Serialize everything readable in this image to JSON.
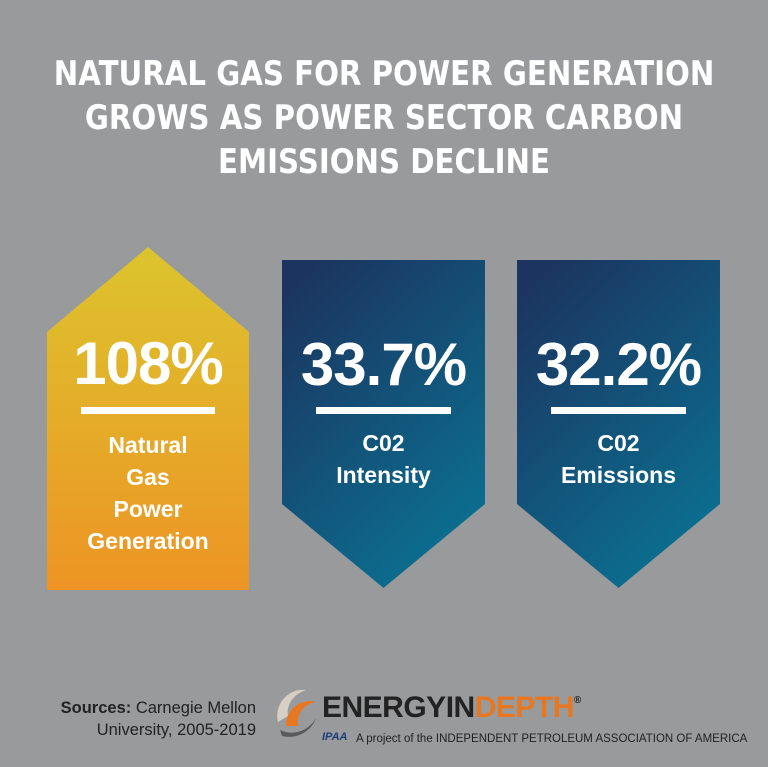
{
  "title": {
    "line1": "NATURAL GAS FOR POWER GENERATION",
    "line2": "GROWS AS POWER SECTOR CARBON",
    "line3": "EMISSIONS DECLINE"
  },
  "cards": [
    {
      "value": "108%",
      "label_lines": [
        "Natural",
        "Gas",
        "Power",
        "Generation"
      ],
      "direction": "up",
      "colors": {
        "top": "#e0c22d",
        "bottom": "#ec9a26"
      }
    },
    {
      "value": "33.7%",
      "label_lines": [
        "C02",
        "Intensity"
      ],
      "direction": "down",
      "colors": {
        "top": "#1c3a62",
        "bottom": "#0e6e90"
      }
    },
    {
      "value": "32.2%",
      "label_lines": [
        "C02",
        "Emissions"
      ],
      "direction": "down",
      "colors": {
        "top": "#1c3a62",
        "bottom": "#0e6e90"
      }
    }
  ],
  "sources": {
    "label": "Sources:",
    "line1": "Carnegie Mellon",
    "line2": "University, 2005-2019"
  },
  "logo": {
    "part1": "ENERGYIN",
    "part2": "DEPTH",
    "registered": "®",
    "ipaa": "IPAA",
    "tagline": "A project of the INDEPENDENT PETROLEUM ASSOCIATION OF AMERICA",
    "icon": "swirl-logo-icon"
  }
}
